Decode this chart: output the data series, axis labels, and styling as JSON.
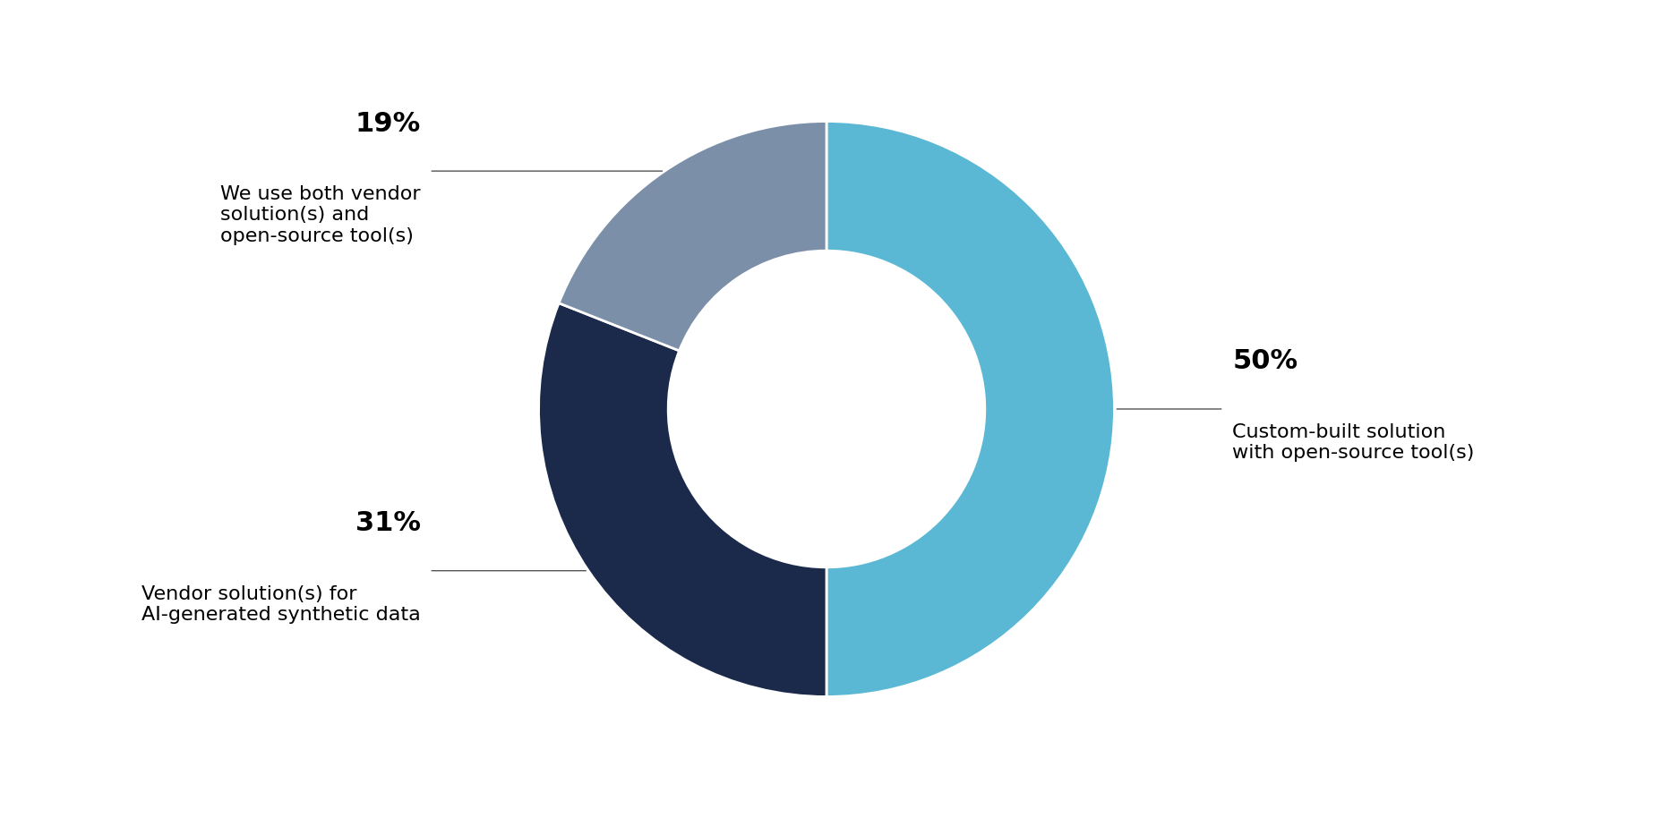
{
  "slices": [
    50,
    31,
    19
  ],
  "colors": [
    "#5BB8D4",
    "#1B2A4A",
    "#7B8FA8"
  ],
  "labels_0": "Custom-built solution\nwith open-source tool(s)",
  "labels_1": "Vendor solution(s) for\nAI-generated synthetic data",
  "labels_2": "We use both vendor\nsolution(s) and\nopen-source tool(s)",
  "percentages": [
    "50%",
    "31%",
    "19%"
  ],
  "background_color": "#FFFFFF",
  "start_angle": 90,
  "donut_width": 0.45,
  "annotation_line_color": "#555555",
  "pct_fontsize": 22,
  "label_fontsize": 16
}
